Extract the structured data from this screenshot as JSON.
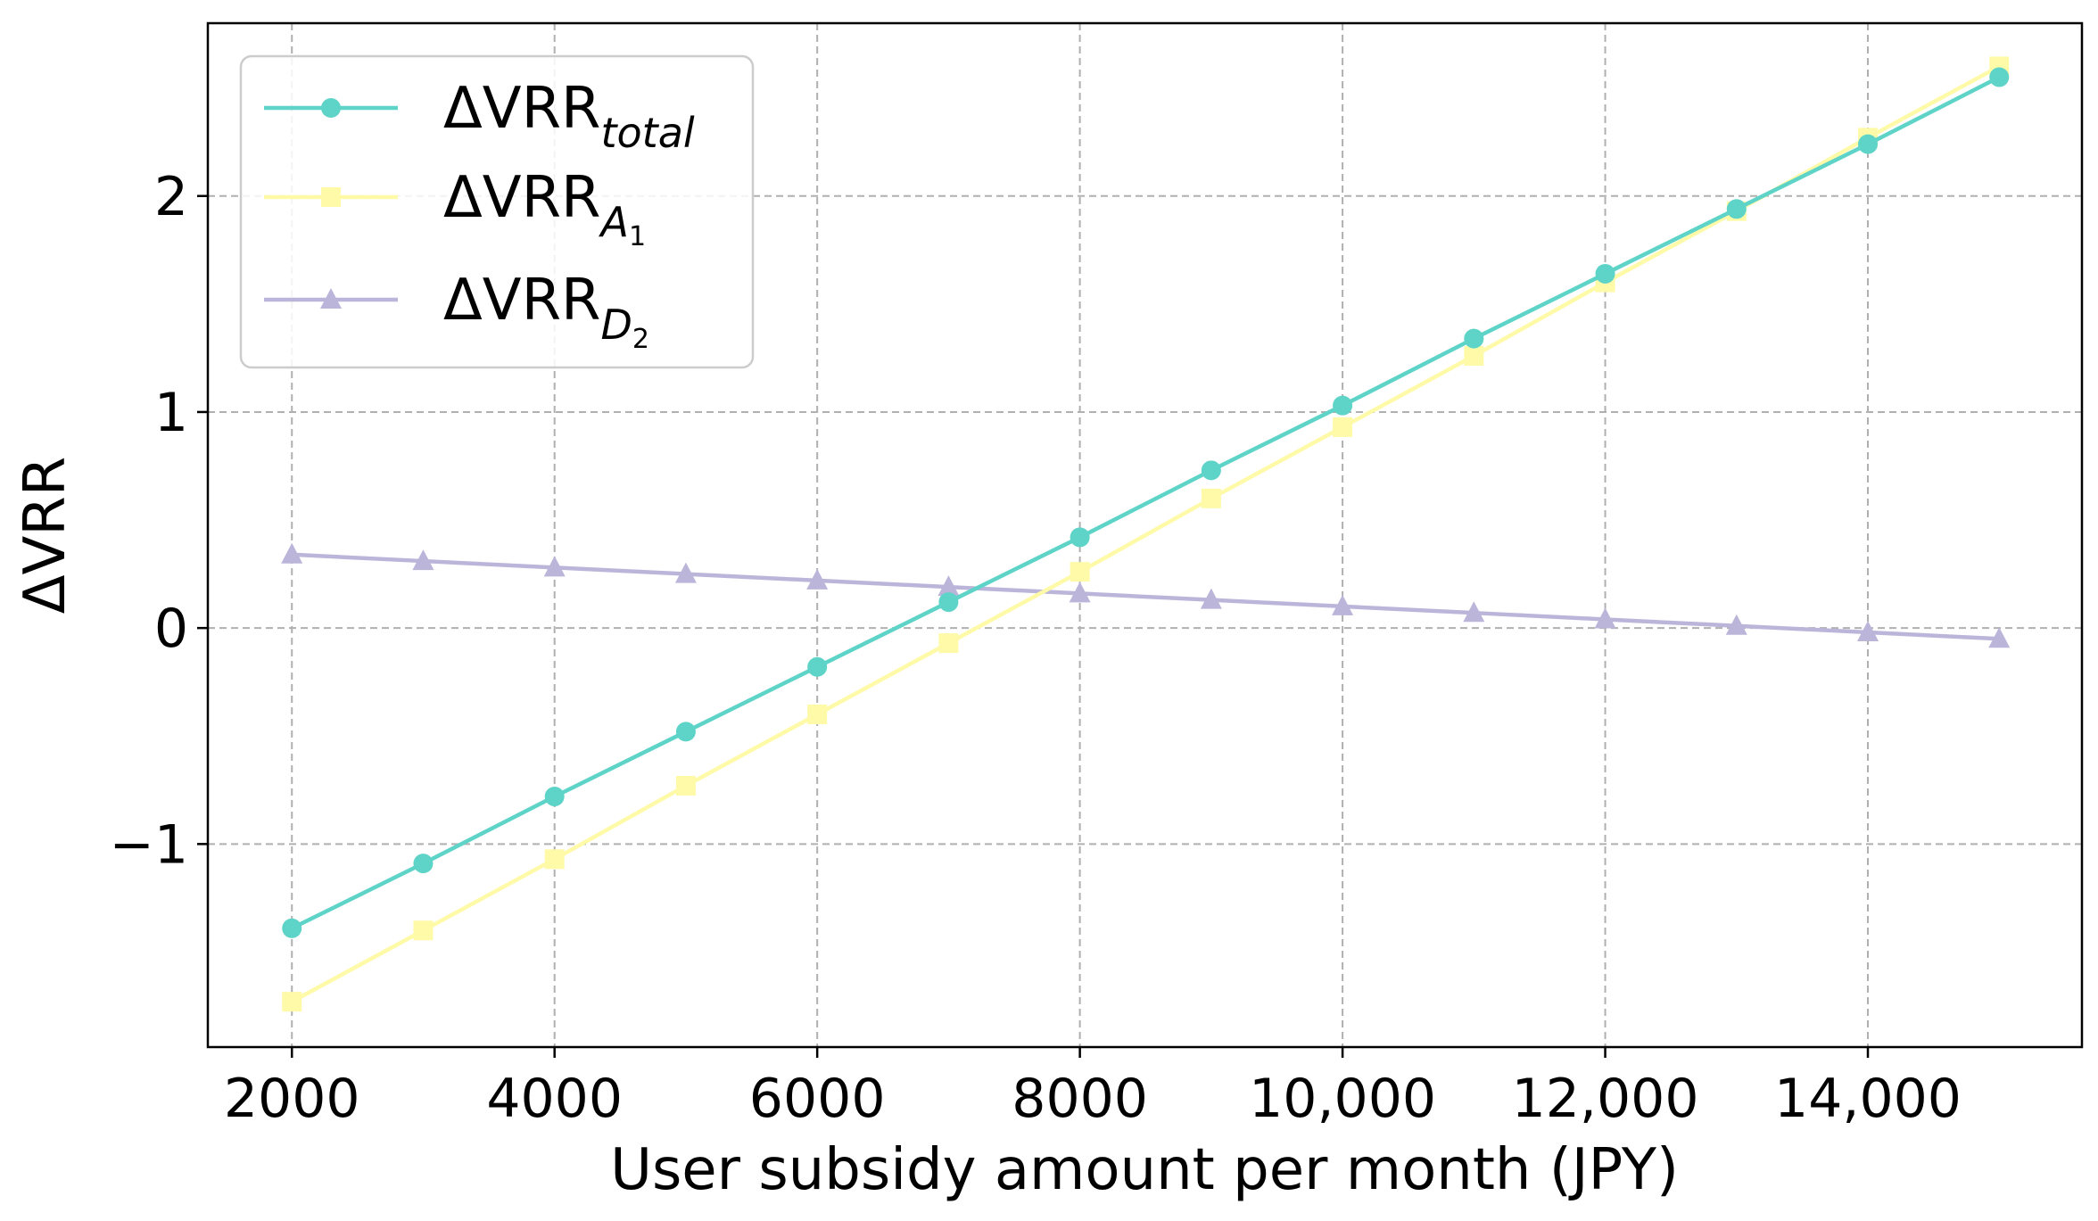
{
  "chart_data": {
    "type": "line",
    "title": "",
    "xlabel": "User subsidy amount per month (JPY)",
    "ylabel": "ΔVRR",
    "x": [
      2000,
      3000,
      4000,
      5000,
      6000,
      7000,
      8000,
      9000,
      10000,
      11000,
      12000,
      13000,
      14000,
      15000
    ],
    "xlim": [
      1360,
      15630
    ],
    "ylim": [
      -1.94,
      2.8
    ],
    "grid": true,
    "legend_position": "top-left",
    "xticks": [
      {
        "value": 2000,
        "label": "2000"
      },
      {
        "value": 4000,
        "label": "4000"
      },
      {
        "value": 6000,
        "label": "6000"
      },
      {
        "value": 8000,
        "label": "8000"
      },
      {
        "value": 10000,
        "label": "10,000"
      },
      {
        "value": 12000,
        "label": "12,000"
      },
      {
        "value": 14000,
        "label": "14,000"
      }
    ],
    "yticks": [
      {
        "value": -1,
        "label": "−1"
      },
      {
        "value": 0,
        "label": "0"
      },
      {
        "value": 1,
        "label": "1"
      },
      {
        "value": 2,
        "label": "2"
      }
    ],
    "series": [
      {
        "key": "total",
        "legend_main": "ΔVRR",
        "legend_sub": "total",
        "legend_subsub": "",
        "color": "#5ed3c7",
        "marker": "circle",
        "values": [
          -1.39,
          -1.09,
          -0.78,
          -0.48,
          -0.18,
          0.12,
          0.42,
          0.73,
          1.03,
          1.34,
          1.64,
          1.94,
          2.24,
          2.55
        ]
      },
      {
        "key": "A1",
        "legend_main": "ΔVRR",
        "legend_sub": "A",
        "legend_subsub": "1",
        "color": "#fefaa8",
        "marker": "square",
        "values": [
          -1.73,
          -1.4,
          -1.07,
          -0.73,
          -0.4,
          -0.07,
          0.26,
          0.6,
          0.93,
          1.26,
          1.6,
          1.93,
          2.27,
          2.6
        ]
      },
      {
        "key": "D2",
        "legend_main": "ΔVRR",
        "legend_sub": "D",
        "legend_subsub": "2",
        "color": "#bcb5da",
        "marker": "triangle",
        "values": [
          0.34,
          0.31,
          0.28,
          0.25,
          0.22,
          0.19,
          0.16,
          0.13,
          0.1,
          0.07,
          0.04,
          0.01,
          -0.02,
          -0.05
        ]
      }
    ]
  }
}
